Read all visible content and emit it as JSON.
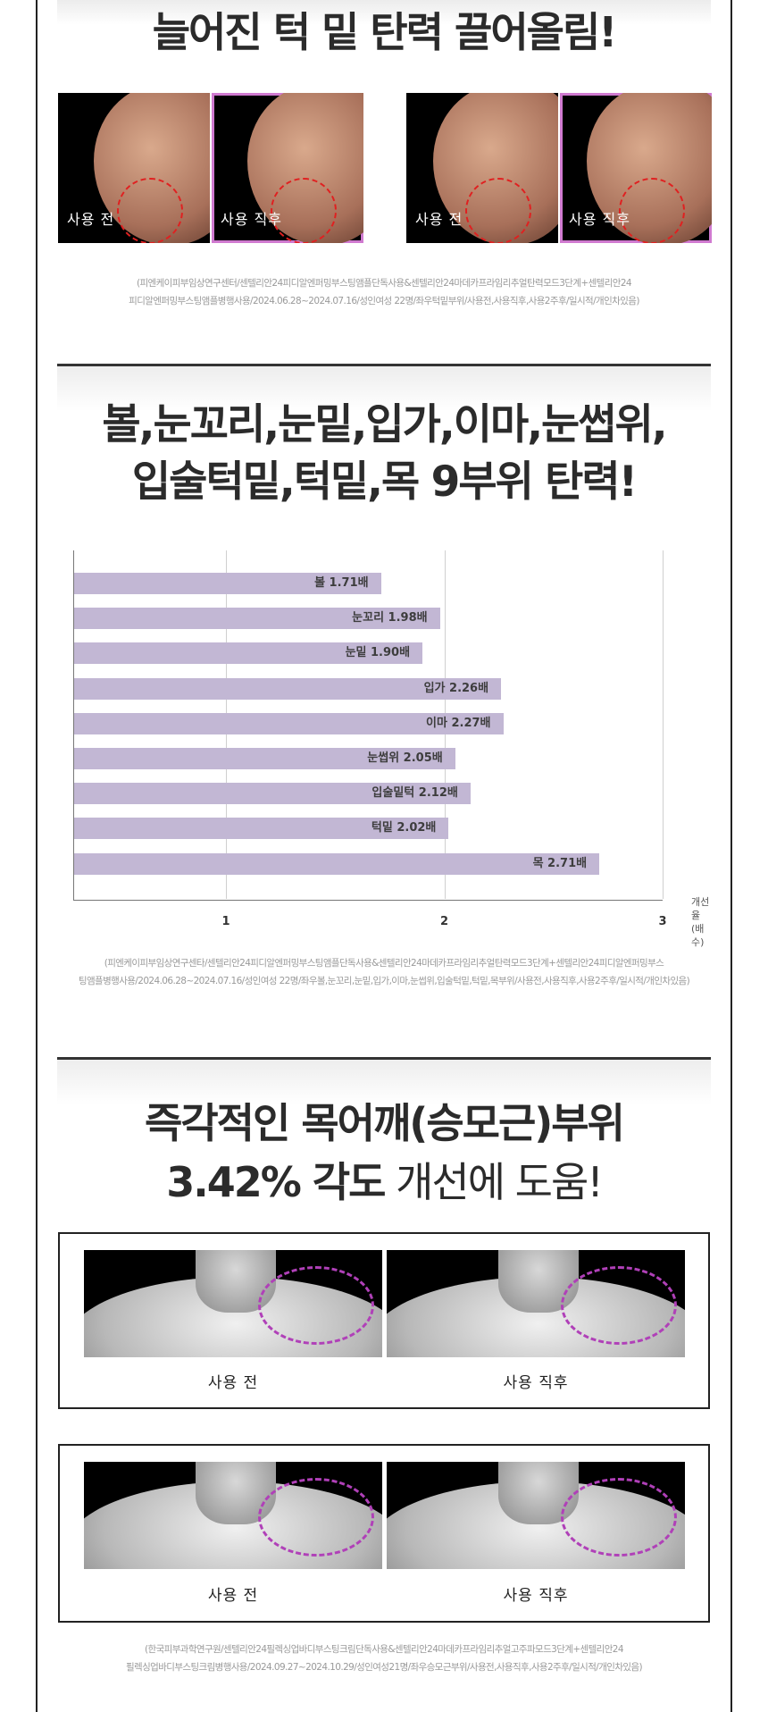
{
  "section1": {
    "title": "늘어진 턱 밑 탄력 끌어올림!",
    "photo_labels": {
      "before": "사용 전",
      "after": "사용 직후"
    },
    "note_line1": "(피엔케이피부임상연구센터/센텔리안24피디알엔퍼밍부스팅앰플단독사용&센텔리안24마데카프라임리추얼탄력모드3단계+센텔리안24",
    "note_line2": "피디알엔퍼밍부스팅앰플병행사용/2024.06.28~2024.07.16/성인여성 22명/좌우턱밑부위/사용전,사용직후,사용2주후/일시적/개인차있음)"
  },
  "section2": {
    "title_line1": "볼,눈꼬리,눈밑,입가,이마,눈썹위,",
    "title_line2": "입술턱밑,턱밑,목 9부위 탄력!",
    "note_line1": "(피엔케이피부임상연구센타/센텔리안24피디알엔퍼밍부스팅앰플단독사용&센텔리안24마데카프라임리추얼탄력모드3단계+센텔리안24피디알엔퍼밍부스",
    "note_line2": "팅앰플병행사용/2024.06.28~2024.07.16/성인여성 22명/좌우볼,눈꼬리,눈밑,입가,이마,눈썹위,입술턱밑,턱밑,목부위/사용전,사용직후,사용2주후/일시적/개인차있음)"
  },
  "chart_data": {
    "type": "bar",
    "orientation": "horizontal",
    "categories": [
      "볼",
      "눈꼬리",
      "눈밑",
      "입가",
      "이마",
      "눈썹위",
      "입술밑턱",
      "턱밑",
      "목"
    ],
    "values": [
      1.71,
      1.98,
      1.9,
      2.26,
      2.27,
      2.05,
      2.12,
      2.02,
      2.71
    ],
    "data_labels": [
      "볼 1.71배",
      "눈꼬리 1.98배",
      "눈밑 1.90배",
      "입가 2.26배",
      "이마 2.27배",
      "눈썹위 2.05배",
      "입술밑턱 2.12배",
      "턱밑 2.02배",
      "목 2.71배"
    ],
    "x_ticks": [
      "1",
      "2",
      "3"
    ],
    "xlim": [
      0.3,
      3
    ],
    "xlabel_line1": "개선율",
    "xlabel_line2": "(배수)",
    "grid": true,
    "bar_color": "#c2b7d4"
  },
  "section3": {
    "title_line1": "즉각적인 목어깨(승모근)부위",
    "title_bold": "3.42% 각도",
    "title_rest": " 개선에 도움!",
    "label_before": "사용 전",
    "label_after": "사용 직후",
    "note_line1": "(한국피부과학연구원/센텔리안24필렉싱업바디부스팅크림단독사용&센텔리안24마데카프라임리추얼고주파모드3단계+센텔리안24",
    "note_line2": "필렉싱업바디부스팅크림병행사용/2024.09.27~2024.10.29/성인여성21명/좌우승모근부위/사용전,사용직후,사용2주후/일시적/개인차있음)"
  },
  "colors": {
    "accent_pink": "#d07ad0",
    "circle_red": "#e02020",
    "ring_purple": "#b040b8",
    "text_dark": "#2b2b2b"
  }
}
